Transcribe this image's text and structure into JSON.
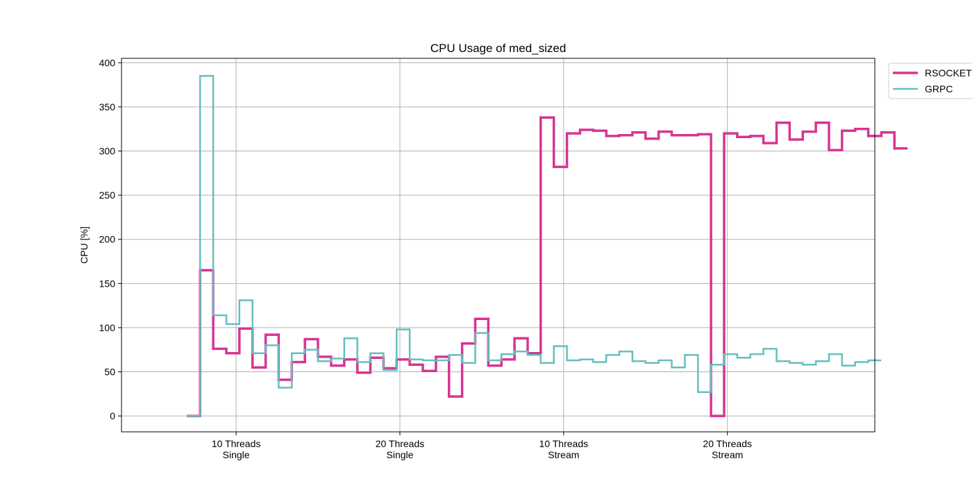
{
  "chart_data": {
    "type": "line",
    "step": true,
    "title": "CPU Usage of med_sized",
    "ylabel": "CPU [%]",
    "xlabel": "",
    "ylim": [
      -18,
      405
    ],
    "yticks": [
      0,
      50,
      100,
      150,
      200,
      250,
      300,
      350,
      400
    ],
    "xlim": [
      -2,
      44
    ],
    "xticks": [
      {
        "x": 5,
        "label": [
          "10 Threads",
          "Single"
        ]
      },
      {
        "x": 15,
        "label": [
          "20 Threads",
          "Single"
        ]
      },
      {
        "x": 25,
        "label": [
          "10 Threads",
          "Stream"
        ]
      },
      {
        "x": 35,
        "label": [
          "20 Threads",
          "Stream"
        ]
      }
    ],
    "grid": true,
    "legend_position": "outside-top-right",
    "series": [
      {
        "name": "RSOCKET",
        "color": "#d63592",
        "width": 3.5,
        "x_start": 2,
        "step_width": 0.8,
        "values": [
          0,
          165,
          76,
          71,
          99,
          55,
          92,
          41,
          61,
          87,
          67,
          57,
          64,
          49,
          66,
          54,
          64,
          58,
          51,
          67,
          22,
          82,
          110,
          57,
          64,
          88,
          71,
          338,
          282,
          320,
          324,
          323,
          317,
          318,
          321,
          314,
          322,
          318,
          318,
          319,
          0,
          320,
          316,
          317,
          309,
          332,
          313,
          322,
          332,
          301,
          323,
          325,
          317,
          321,
          303
        ]
      },
      {
        "name": "GRPC",
        "color": "#65bfbf",
        "width": 2.5,
        "x_start": 2,
        "step_width": 0.8,
        "values": [
          0,
          385,
          114,
          104,
          131,
          71,
          80,
          32,
          71,
          75,
          62,
          65,
          88,
          61,
          71,
          52,
          98,
          64,
          63,
          63,
          69,
          60,
          94,
          63,
          70,
          73,
          69,
          60,
          79,
          63,
          64,
          61,
          69,
          73,
          62,
          60,
          63,
          55,
          69,
          27,
          58,
          70,
          66,
          70,
          76,
          62,
          60,
          58,
          62,
          70,
          57,
          61,
          63
        ]
      }
    ]
  }
}
